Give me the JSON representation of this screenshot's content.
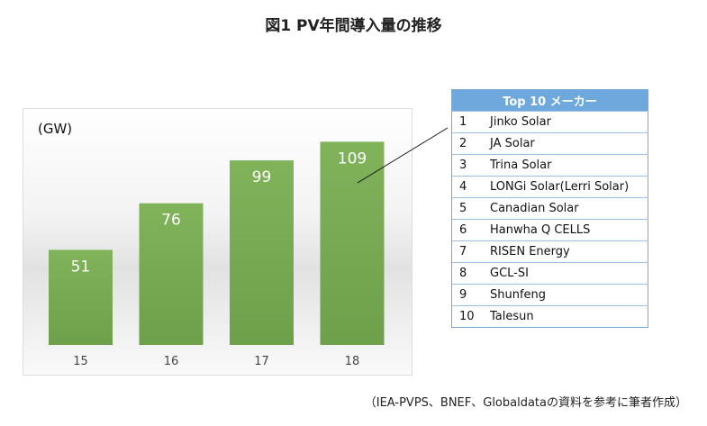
{
  "chart_data": {
    "type": "bar",
    "title": "図1 PV年間導入量の推移",
    "ylabel": "(GW)",
    "categories": [
      "15",
      "16",
      "17",
      "18"
    ],
    "values": [
      51,
      76,
      99,
      109
    ],
    "ylim": [
      0,
      115
    ],
    "color": "#78ad53"
  },
  "table": {
    "header": "Top 10 メーカー",
    "rows": [
      [
        "1",
        "Jinko Solar"
      ],
      [
        "2",
        "JA Solar"
      ],
      [
        "3",
        "Trina Solar"
      ],
      [
        "4",
        "LONGi Solar(Lerri Solar)"
      ],
      [
        "5",
        "Canadian Solar"
      ],
      [
        "6",
        "Hanwha Q CELLS"
      ],
      [
        "7",
        "RISEN Energy"
      ],
      [
        "8",
        "GCL-SI"
      ],
      [
        "9",
        "Shunfeng"
      ],
      [
        "10",
        "Talesun"
      ]
    ]
  },
  "footnote": "（IEA-PVPS、BNEF、Globaldataの資料を参考に筆者作成）"
}
